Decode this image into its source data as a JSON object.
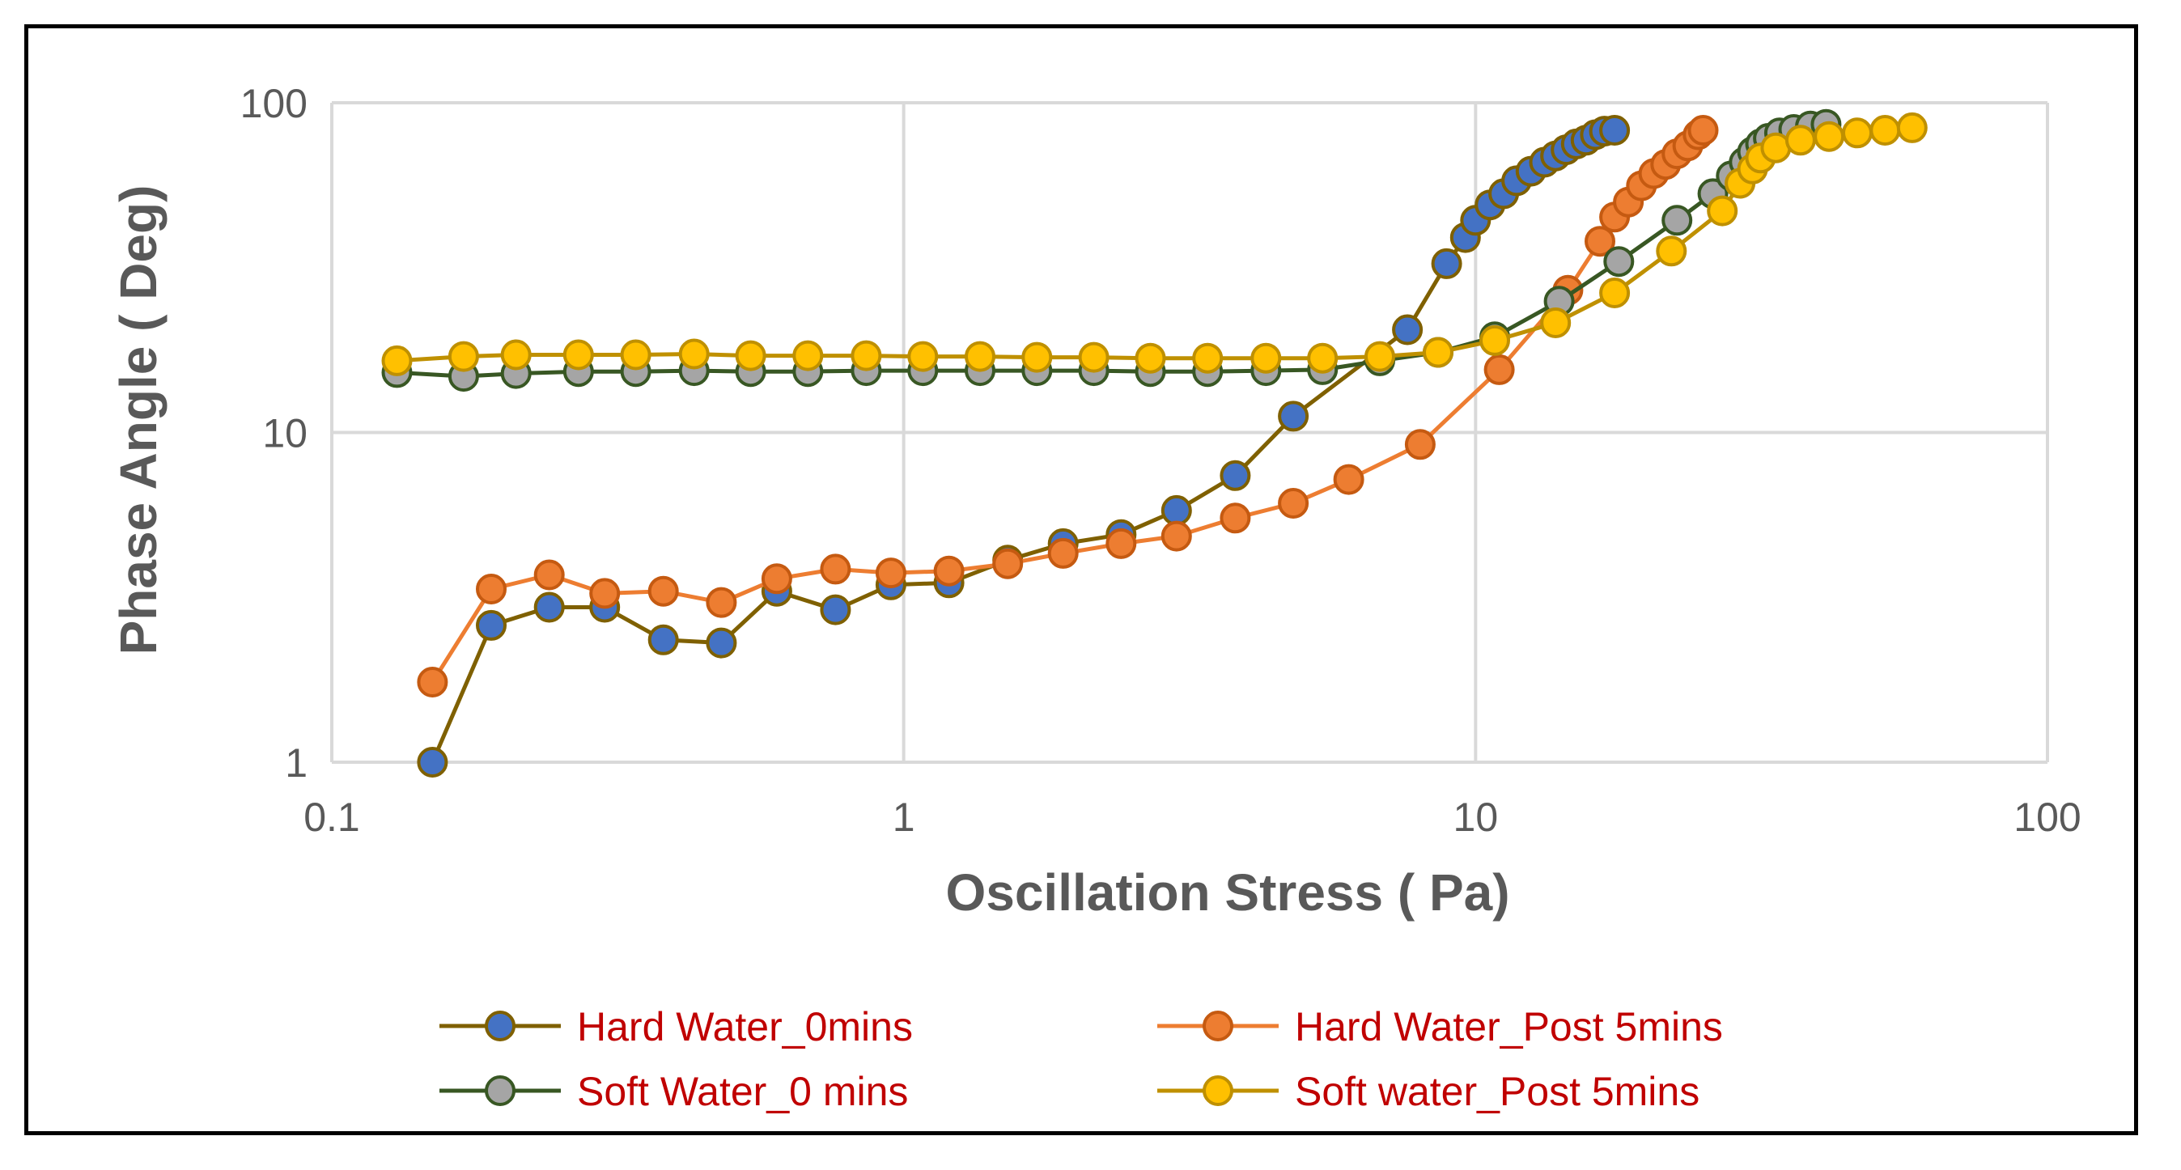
{
  "chart_data": {
    "type": "scatter",
    "title": "",
    "xlabel": "Oscillation Stress ( Pa)",
    "ylabel": "Phase Angle ( Deg)",
    "xscale": "log",
    "yscale": "log",
    "xlim": [
      0.1,
      100
    ],
    "ylim": [
      1,
      100
    ],
    "x_ticks": [
      "0.1",
      "1",
      "10",
      "100"
    ],
    "y_ticks": [
      "1",
      "10",
      "100"
    ],
    "grid": true,
    "legend": "bottom",
    "series": [
      {
        "name": "Hard Water_0mins",
        "line_color": "#7f6000",
        "marker_fill": "#4472c4",
        "marker_edge": "#7f6000",
        "points": [
          [
            0.15,
            1.0
          ],
          [
            0.19,
            2.6
          ],
          [
            0.24,
            2.95
          ],
          [
            0.3,
            2.95
          ],
          [
            0.38,
            2.35
          ],
          [
            0.48,
            2.3
          ],
          [
            0.6,
            3.3
          ],
          [
            0.76,
            2.9
          ],
          [
            0.95,
            3.45
          ],
          [
            1.2,
            3.5
          ],
          [
            1.52,
            4.1
          ],
          [
            1.9,
            4.6
          ],
          [
            2.4,
            4.9
          ],
          [
            3.0,
            5.8
          ],
          [
            3.8,
            7.4
          ],
          [
            4.8,
            11.2
          ],
          [
            7.6,
            20.5
          ],
          [
            8.9,
            32.5
          ],
          [
            9.6,
            39
          ],
          [
            10.0,
            44
          ],
          [
            10.6,
            49
          ],
          [
            11.2,
            53
          ],
          [
            11.8,
            58
          ],
          [
            12.5,
            62
          ],
          [
            13.2,
            66
          ],
          [
            13.8,
            69
          ],
          [
            14.4,
            72
          ],
          [
            15.0,
            75
          ],
          [
            15.6,
            77
          ],
          [
            16.2,
            80
          ],
          [
            16.8,
            82
          ],
          [
            17.5,
            82.5
          ]
        ]
      },
      {
        "name": "Hard Water_Post 5mins",
        "line_color": "#ed7d31",
        "marker_fill": "#ed7d31",
        "marker_edge": "#c55a11",
        "points": [
          [
            0.15,
            1.75
          ],
          [
            0.19,
            3.35
          ],
          [
            0.24,
            3.7
          ],
          [
            0.3,
            3.25
          ],
          [
            0.38,
            3.3
          ],
          [
            0.48,
            3.05
          ],
          [
            0.6,
            3.6
          ],
          [
            0.76,
            3.85
          ],
          [
            0.95,
            3.75
          ],
          [
            1.2,
            3.8
          ],
          [
            1.52,
            4.0
          ],
          [
            1.9,
            4.3
          ],
          [
            2.4,
            4.6
          ],
          [
            3.0,
            4.85
          ],
          [
            3.8,
            5.5
          ],
          [
            4.8,
            6.1
          ],
          [
            6.0,
            7.2
          ],
          [
            8.0,
            9.2
          ],
          [
            11.0,
            15.5
          ],
          [
            14.5,
            27
          ],
          [
            16.5,
            38
          ],
          [
            17.5,
            45
          ],
          [
            18.5,
            50
          ],
          [
            19.5,
            56
          ],
          [
            20.5,
            61
          ],
          [
            21.5,
            65
          ],
          [
            22.5,
            70
          ],
          [
            23.5,
            74
          ],
          [
            24.5,
            80
          ],
          [
            25.0,
            82.5
          ]
        ]
      },
      {
        "name": "Soft Water_0 mins",
        "line_color": "#385723",
        "marker_fill": "#a5a5a5",
        "marker_edge": "#385723",
        "points": [
          [
            0.13,
            15.2
          ],
          [
            0.17,
            14.8
          ],
          [
            0.21,
            15.1
          ],
          [
            0.27,
            15.3
          ],
          [
            0.34,
            15.3
          ],
          [
            0.43,
            15.4
          ],
          [
            0.54,
            15.3
          ],
          [
            0.68,
            15.3
          ],
          [
            0.86,
            15.4
          ],
          [
            1.08,
            15.4
          ],
          [
            1.36,
            15.4
          ],
          [
            1.71,
            15.4
          ],
          [
            2.15,
            15.4
          ],
          [
            2.7,
            15.3
          ],
          [
            3.4,
            15.3
          ],
          [
            4.3,
            15.4
          ],
          [
            5.4,
            15.5
          ],
          [
            6.8,
            16.5
          ],
          [
            8.6,
            17.5
          ],
          [
            10.8,
            19.5
          ],
          [
            14.0,
            25
          ],
          [
            17.8,
            33
          ],
          [
            22.5,
            44
          ],
          [
            26.0,
            53
          ],
          [
            28.0,
            60
          ],
          [
            29.5,
            66
          ],
          [
            30.5,
            71
          ],
          [
            31.5,
            75
          ],
          [
            32.5,
            78
          ],
          [
            34.0,
            81
          ],
          [
            36.0,
            83
          ],
          [
            38.5,
            85
          ],
          [
            41.0,
            86
          ]
        ]
      },
      {
        "name": "Soft water_Post 5mins",
        "line_color": "#bf9000",
        "marker_fill": "#ffc000",
        "marker_edge": "#bf9000",
        "points": [
          [
            0.13,
            16.5
          ],
          [
            0.17,
            17.0
          ],
          [
            0.21,
            17.2
          ],
          [
            0.27,
            17.2
          ],
          [
            0.34,
            17.2
          ],
          [
            0.43,
            17.3
          ],
          [
            0.54,
            17.1
          ],
          [
            0.68,
            17.1
          ],
          [
            0.86,
            17.1
          ],
          [
            1.08,
            17.0
          ],
          [
            1.36,
            17.0
          ],
          [
            1.71,
            16.9
          ],
          [
            2.15,
            16.9
          ],
          [
            2.7,
            16.8
          ],
          [
            3.4,
            16.8
          ],
          [
            4.3,
            16.8
          ],
          [
            5.4,
            16.8
          ],
          [
            6.8,
            17.0
          ],
          [
            8.6,
            17.5
          ],
          [
            10.8,
            19.0
          ],
          [
            13.8,
            21.5
          ],
          [
            17.5,
            26.5
          ],
          [
            22.0,
            35.5
          ],
          [
            27.0,
            47
          ],
          [
            29.0,
            57
          ],
          [
            30.5,
            63
          ],
          [
            31.5,
            68
          ],
          [
            33.5,
            73
          ],
          [
            37.0,
            77
          ],
          [
            41.5,
            79
          ],
          [
            46.5,
            81
          ],
          [
            52.0,
            82.5
          ],
          [
            58.0,
            84
          ]
        ]
      }
    ]
  }
}
